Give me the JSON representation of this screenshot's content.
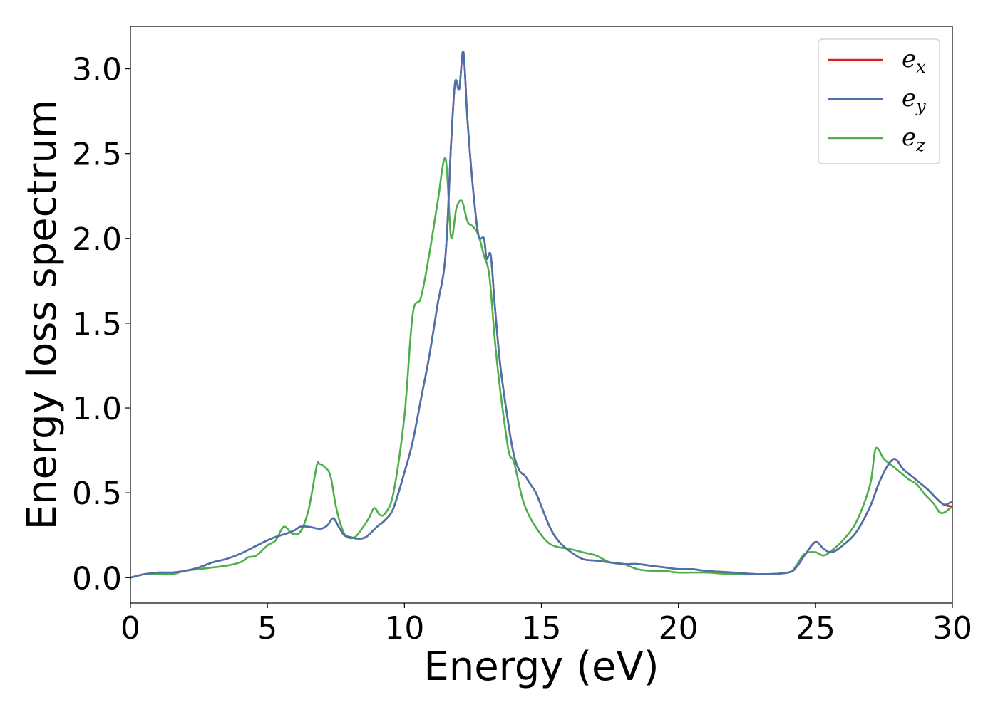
{
  "chart_data": {
    "type": "line",
    "xlabel": "Energy (eV)",
    "ylabel": "Energy loss spectrum",
    "xlim": [
      0,
      30
    ],
    "ylim": [
      -0.15,
      3.25
    ],
    "xticks": [
      0,
      5,
      10,
      15,
      20,
      25,
      30
    ],
    "xtick_labels": [
      "0",
      "5",
      "10",
      "15",
      "20",
      "25",
      "30"
    ],
    "yticks": [
      0.0,
      0.5,
      1.0,
      1.5,
      2.0,
      2.5,
      3.0
    ],
    "ytick_labels": [
      "0.0",
      "0.5",
      "1.0",
      "1.5",
      "2.0",
      "2.5",
      "3.0"
    ],
    "grid": false,
    "legend_position": "top-right",
    "series": [
      {
        "name": "e_x",
        "legend_base": "e",
        "legend_sub": "x",
        "color": "#e41a1c",
        "x": [
          0,
          0.5,
          1,
          1.5,
          2,
          2.5,
          3,
          3.5,
          4,
          4.5,
          5,
          5.3,
          5.7,
          6,
          6.2,
          6.5,
          6.8,
          7,
          7.2,
          7.4,
          7.6,
          7.8,
          8,
          8.3,
          8.6,
          9,
          9.3,
          9.6,
          10,
          10.3,
          10.6,
          10.9,
          11.2,
          11.5,
          11.7,
          11.85,
          12,
          12.15,
          12.3,
          12.5,
          12.7,
          12.9,
          13,
          13.15,
          13.3,
          13.5,
          13.8,
          14,
          14.2,
          14.4,
          14.6,
          14.8,
          15,
          15.3,
          15.6,
          16,
          16.5,
          17,
          17.5,
          18,
          18.5,
          19,
          19.5,
          20,
          20.5,
          21,
          22,
          23,
          24,
          24.3,
          24.6,
          25,
          25.3,
          25.6,
          26,
          26.5,
          27,
          27.3,
          27.6,
          27.9,
          28.2,
          28.5,
          28.8,
          29.1,
          29.4,
          29.7,
          30
        ],
        "y": [
          0,
          0.02,
          0.03,
          0.03,
          0.04,
          0.06,
          0.09,
          0.11,
          0.14,
          0.18,
          0.22,
          0.24,
          0.26,
          0.28,
          0.3,
          0.3,
          0.29,
          0.29,
          0.31,
          0.35,
          0.3,
          0.25,
          0.24,
          0.23,
          0.24,
          0.3,
          0.34,
          0.41,
          0.62,
          0.8,
          1.05,
          1.3,
          1.6,
          1.9,
          2.55,
          2.92,
          2.88,
          3.1,
          2.7,
          2.3,
          2.02,
          2.0,
          1.88,
          1.9,
          1.6,
          1.25,
          0.9,
          0.72,
          0.63,
          0.6,
          0.55,
          0.5,
          0.42,
          0.3,
          0.22,
          0.16,
          0.11,
          0.1,
          0.09,
          0.08,
          0.08,
          0.07,
          0.06,
          0.05,
          0.05,
          0.04,
          0.03,
          0.02,
          0.03,
          0.06,
          0.13,
          0.21,
          0.17,
          0.15,
          0.19,
          0.27,
          0.42,
          0.55,
          0.65,
          0.7,
          0.64,
          0.6,
          0.56,
          0.52,
          0.47,
          0.43,
          0.42
        ]
      },
      {
        "name": "e_y",
        "legend_base": "e",
        "legend_sub": "y",
        "color": "#4a72ad",
        "x": [
          0,
          0.5,
          1,
          1.5,
          2,
          2.5,
          3,
          3.5,
          4,
          4.5,
          5,
          5.3,
          5.7,
          6,
          6.2,
          6.5,
          6.8,
          7,
          7.2,
          7.4,
          7.6,
          7.8,
          8,
          8.3,
          8.6,
          9,
          9.3,
          9.6,
          10,
          10.3,
          10.6,
          10.9,
          11.2,
          11.5,
          11.7,
          11.85,
          12,
          12.15,
          12.3,
          12.5,
          12.7,
          12.9,
          13,
          13.15,
          13.3,
          13.5,
          13.8,
          14,
          14.2,
          14.4,
          14.6,
          14.8,
          15,
          15.3,
          15.6,
          16,
          16.5,
          17,
          17.5,
          18,
          18.5,
          19,
          19.5,
          20,
          20.5,
          21,
          22,
          23,
          24,
          24.3,
          24.6,
          25,
          25.3,
          25.6,
          26,
          26.5,
          27,
          27.3,
          27.6,
          27.9,
          28.2,
          28.5,
          28.8,
          29.1,
          29.4,
          29.7,
          30
        ],
        "y": [
          0,
          0.02,
          0.03,
          0.03,
          0.04,
          0.06,
          0.09,
          0.11,
          0.14,
          0.18,
          0.22,
          0.24,
          0.26,
          0.28,
          0.3,
          0.3,
          0.29,
          0.29,
          0.31,
          0.35,
          0.3,
          0.25,
          0.24,
          0.23,
          0.24,
          0.3,
          0.34,
          0.41,
          0.62,
          0.8,
          1.05,
          1.3,
          1.6,
          1.9,
          2.55,
          2.92,
          2.88,
          3.1,
          2.7,
          2.3,
          2.02,
          2.0,
          1.88,
          1.9,
          1.6,
          1.25,
          0.9,
          0.72,
          0.63,
          0.6,
          0.55,
          0.5,
          0.42,
          0.3,
          0.22,
          0.16,
          0.11,
          0.1,
          0.09,
          0.08,
          0.08,
          0.07,
          0.06,
          0.05,
          0.05,
          0.04,
          0.03,
          0.02,
          0.03,
          0.06,
          0.13,
          0.21,
          0.17,
          0.15,
          0.19,
          0.27,
          0.42,
          0.55,
          0.65,
          0.7,
          0.64,
          0.6,
          0.56,
          0.52,
          0.47,
          0.43,
          0.45
        ]
      },
      {
        "name": "e_z",
        "legend_base": "e",
        "legend_sub": "z",
        "color": "#4daf4a",
        "x": [
          0,
          0.5,
          1,
          1.5,
          2,
          2.5,
          3,
          3.5,
          4,
          4.3,
          4.6,
          5,
          5.3,
          5.6,
          5.9,
          6.2,
          6.5,
          6.8,
          6.9,
          7.1,
          7.3,
          7.5,
          7.7,
          7.9,
          8.2,
          8.5,
          8.7,
          8.9,
          9.1,
          9.3,
          9.6,
          10,
          10.3,
          10.6,
          10.9,
          11.2,
          11.5,
          11.7,
          11.9,
          12.1,
          12.3,
          12.5,
          12.7,
          12.9,
          13.1,
          13.3,
          13.5,
          13.8,
          14,
          14.3,
          14.6,
          15,
          15.3,
          15.6,
          16,
          16.5,
          17,
          17.5,
          18,
          18.5,
          19,
          19.5,
          20,
          21,
          22,
          23,
          24,
          24.3,
          24.6,
          25,
          25.3,
          25.6,
          26,
          26.5,
          27,
          27.2,
          27.5,
          27.8,
          28.1,
          28.4,
          28.7,
          29,
          29.3,
          29.6,
          30
        ],
        "y": [
          0,
          0.02,
          0.02,
          0.02,
          0.04,
          0.05,
          0.06,
          0.07,
          0.09,
          0.12,
          0.13,
          0.19,
          0.22,
          0.3,
          0.26,
          0.27,
          0.4,
          0.66,
          0.67,
          0.65,
          0.6,
          0.42,
          0.3,
          0.24,
          0.24,
          0.3,
          0.35,
          0.41,
          0.37,
          0.38,
          0.5,
          0.95,
          1.55,
          1.65,
          1.9,
          2.2,
          2.47,
          2.01,
          2.18,
          2.22,
          2.1,
          2.07,
          2.02,
          1.9,
          1.78,
          1.4,
          1.1,
          0.75,
          0.68,
          0.47,
          0.35,
          0.25,
          0.2,
          0.18,
          0.17,
          0.15,
          0.13,
          0.09,
          0.08,
          0.05,
          0.04,
          0.04,
          0.03,
          0.03,
          0.02,
          0.02,
          0.03,
          0.07,
          0.14,
          0.15,
          0.13,
          0.16,
          0.22,
          0.33,
          0.55,
          0.76,
          0.7,
          0.66,
          0.62,
          0.58,
          0.55,
          0.49,
          0.44,
          0.38,
          0.42
        ]
      }
    ]
  }
}
